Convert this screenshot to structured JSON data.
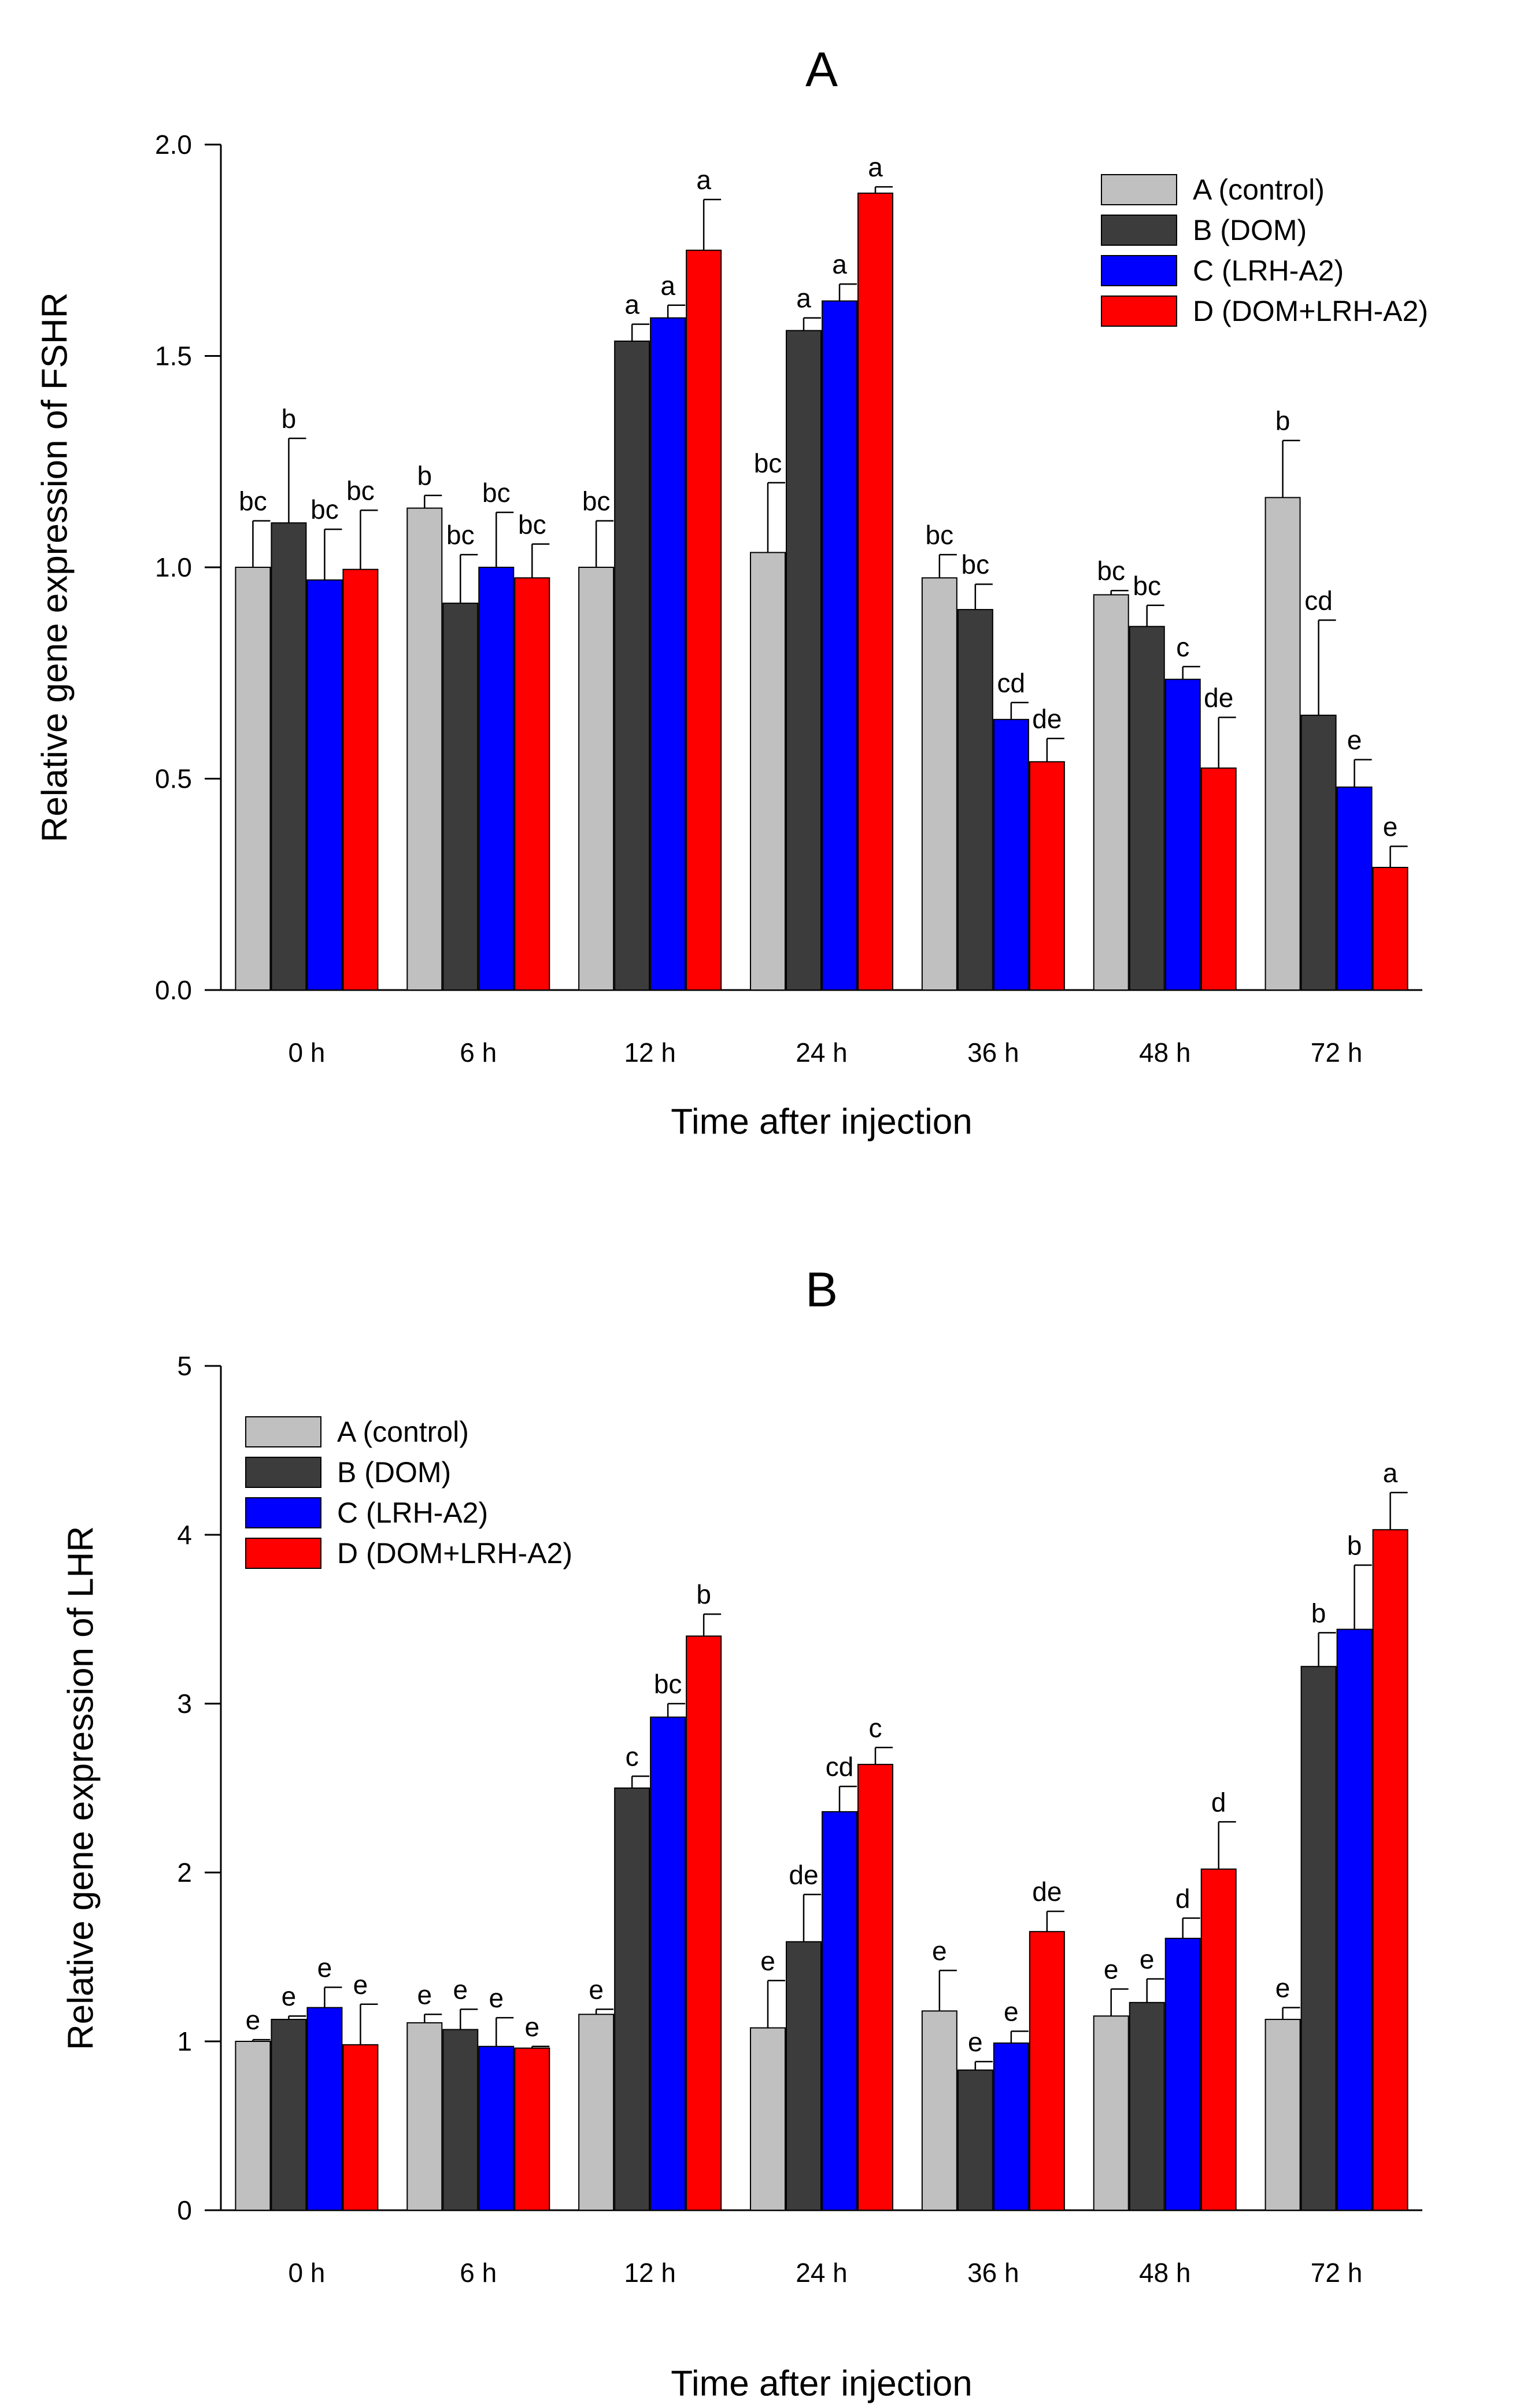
{
  "chart_data": [
    {
      "type": "bar",
      "title": "A",
      "xlabel": "Time after injection",
      "ylabel": "Relative gene expression of FSHR",
      "ylim": [
        0,
        2.0
      ],
      "yticks": [
        0.0,
        0.5,
        1.0,
        1.5,
        2.0
      ],
      "ytick_labels": [
        "0.0",
        "0.5",
        "1.0",
        "1.5",
        "2.0"
      ],
      "categories": [
        "0 h",
        "6 h",
        "12 h",
        "24 h",
        "36 h",
        "48 h",
        "72 h"
      ],
      "legend_position": "top-right",
      "series": [
        {
          "name": "A (control)",
          "color": "#c0c0c0",
          "values": [
            1.0,
            1.14,
            1.0,
            1.035,
            0.975,
            0.935,
            1.165
          ],
          "errors": [
            0.11,
            0.03,
            0.11,
            0.165,
            0.055,
            0.01,
            0.135
          ],
          "letters": [
            "bc",
            "b",
            "bc",
            "bc",
            "bc",
            "bc",
            "b"
          ]
        },
        {
          "name": "B (DOM)",
          "color": "#3c3c3c",
          "values": [
            1.105,
            0.915,
            1.535,
            1.56,
            0.9,
            0.86,
            0.65
          ],
          "errors": [
            0.2,
            0.115,
            0.04,
            0.03,
            0.06,
            0.05,
            0.225
          ],
          "letters": [
            "b",
            "bc",
            "a",
            "a",
            "bc",
            "bc",
            "cd"
          ]
        },
        {
          "name": "C (LRH-A2)",
          "color": "#0000ff",
          "values": [
            0.97,
            1.0,
            1.59,
            1.63,
            0.64,
            0.735,
            0.48
          ],
          "errors": [
            0.12,
            0.13,
            0.03,
            0.04,
            0.04,
            0.03,
            0.065
          ],
          "letters": [
            "bc",
            "bc",
            "a",
            "a",
            "cd",
            "c",
            "e"
          ]
        },
        {
          "name": "D (DOM+LRH-A2)",
          "color": "#ff0000",
          "values": [
            0.995,
            0.975,
            1.75,
            1.885,
            0.54,
            0.525,
            0.29
          ],
          "errors": [
            0.14,
            0.08,
            0.12,
            0.015,
            0.055,
            0.12,
            0.05
          ],
          "letters": [
            "bc",
            "bc",
            "a",
            "a",
            "de",
            "de",
            "e"
          ]
        }
      ]
    },
    {
      "type": "bar",
      "title": "B",
      "xlabel": "Time after injection",
      "ylabel": "Relative gene expression of LHR",
      "ylim": [
        0,
        5
      ],
      "yticks": [
        0,
        1,
        2,
        3,
        4,
        5
      ],
      "ytick_labels": [
        "0",
        "1",
        "2",
        "3",
        "4",
        "5"
      ],
      "categories": [
        "0 h",
        "6 h",
        "12 h",
        "24 h",
        "36 h",
        "48 h",
        "72 h"
      ],
      "legend_position": "top-left",
      "series": [
        {
          "name": "A (control)",
          "color": "#c0c0c0",
          "values": [
            1.0,
            1.11,
            1.16,
            1.08,
            1.18,
            1.15,
            1.13
          ],
          "errors": [
            0.01,
            0.05,
            0.03,
            0.28,
            0.24,
            0.16,
            0.07
          ],
          "letters": [
            "e",
            "e",
            "e",
            "e",
            "e",
            "e",
            "e"
          ]
        },
        {
          "name": "B (DOM)",
          "color": "#3c3c3c",
          "values": [
            1.13,
            1.07,
            2.5,
            1.59,
            0.83,
            1.23,
            3.22
          ],
          "errors": [
            0.02,
            0.12,
            0.07,
            0.28,
            0.05,
            0.14,
            0.2
          ],
          "letters": [
            "e",
            "e",
            "c",
            "de",
            "e",
            "e",
            "b"
          ]
        },
        {
          "name": "C (LRH-A2)",
          "color": "#0000ff",
          "values": [
            1.2,
            0.97,
            2.92,
            2.36,
            0.99,
            1.61,
            3.44
          ],
          "errors": [
            0.12,
            0.17,
            0.08,
            0.15,
            0.07,
            0.12,
            0.38
          ],
          "letters": [
            "e",
            "e",
            "bc",
            "cd",
            "e",
            "d",
            "b"
          ]
        },
        {
          "name": "D (DOM+LRH-A2)",
          "color": "#ff0000",
          "values": [
            0.98,
            0.96,
            3.4,
            2.64,
            1.65,
            2.02,
            4.03
          ],
          "errors": [
            0.24,
            0.01,
            0.13,
            0.1,
            0.12,
            0.28,
            0.22
          ],
          "letters": [
            "e",
            "e",
            "b",
            "c",
            "de",
            "d",
            "a"
          ]
        }
      ]
    }
  ]
}
